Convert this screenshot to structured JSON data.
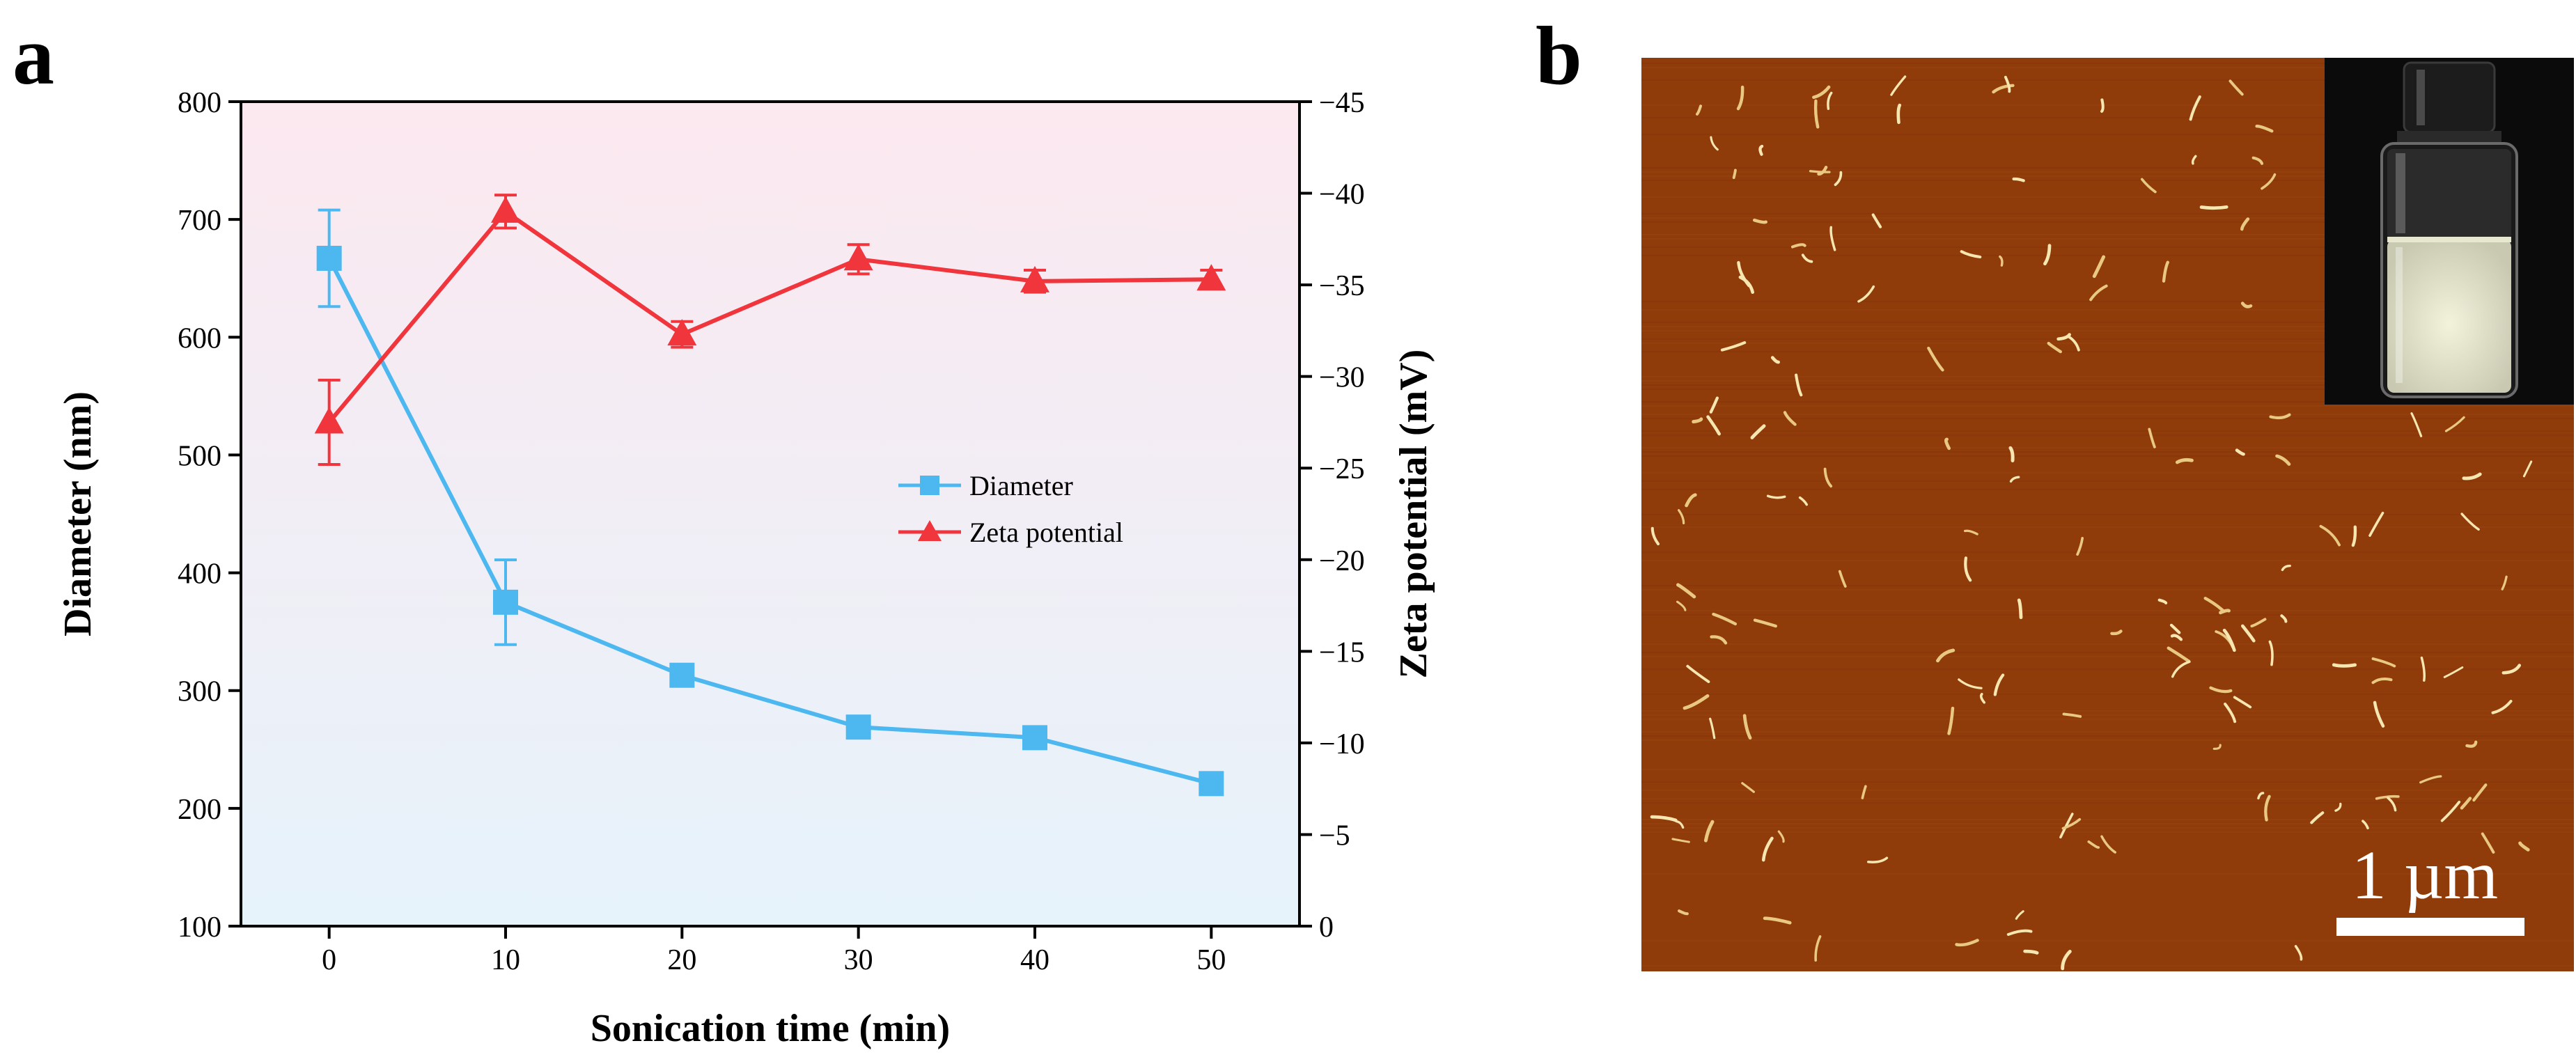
{
  "panel_labels": {
    "a": "a",
    "b": "b"
  },
  "chart_data": {
    "type": "line",
    "title": "",
    "xlabel": "Sonication time (min)",
    "ylabel": "Diameter (nm)",
    "y2label": "Zeta potential (mV)",
    "xlim": [
      -5,
      55
    ],
    "ylim": [
      100,
      800
    ],
    "y2lim": [
      0,
      -45
    ],
    "xticks": [
      "0",
      "10",
      "20",
      "30",
      "40",
      "50"
    ],
    "yticks": [
      "100",
      "200",
      "300",
      "400",
      "500",
      "600",
      "700",
      "800"
    ],
    "y2ticks": [
      "0",
      "−5",
      "−10",
      "−15",
      "−20",
      "−25",
      "−30",
      "−35",
      "−40",
      "−45"
    ],
    "x": [
      0,
      10,
      20,
      30,
      40,
      50
    ],
    "series": [
      {
        "name": "Diameter",
        "axis": "left",
        "marker": "square",
        "color": "#4db8f0",
        "values": [
          667,
          375,
          313,
          269,
          260,
          221
        ],
        "errors": [
          41,
          36,
          8,
          8,
          8,
          8
        ]
      },
      {
        "name": "Zeta potential",
        "axis": "right",
        "marker": "triangle",
        "color": "#f0353d",
        "values": [
          -27.5,
          -39,
          -32.3,
          -36.4,
          -35.2,
          -35.3
        ],
        "errors": [
          2.3,
          0.9,
          0.7,
          0.8,
          0.6,
          0.5
        ]
      }
    ],
    "legend": {
      "position": "center-right",
      "entries": [
        "Diameter",
        "Zeta potential"
      ]
    },
    "colors": {
      "bg_top": "#fce8ef",
      "bg_bottom": "#e6f3fb",
      "axis": "#000000"
    }
  },
  "afm_image": {
    "background": "#8f3b0a",
    "scale_bar_label": "1 µm",
    "inset": "vial photograph"
  }
}
